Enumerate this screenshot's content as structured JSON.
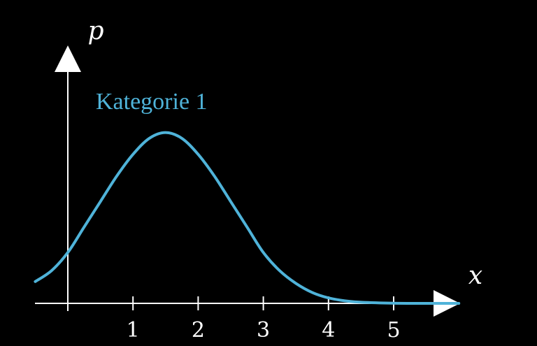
{
  "chart_data": {
    "type": "line",
    "x_axis_label": "x",
    "y_axis_label": "p",
    "x_ticks": [
      1,
      2,
      3,
      4,
      5
    ],
    "xlim": [
      -0.5,
      6.0
    ],
    "series": [
      {
        "name": "Kategorie 1",
        "color": "#4fb3d9",
        "x": [
          -0.5,
          -0.25,
          0.0,
          0.25,
          0.5,
          0.75,
          1.0,
          1.25,
          1.5,
          1.75,
          2.0,
          2.25,
          2.5,
          2.75,
          3.0,
          3.25,
          3.5,
          3.75,
          4.0,
          4.25,
          4.5,
          5.0,
          5.5,
          6.0
        ],
        "y": [
          0.06,
          0.09,
          0.14,
          0.21,
          0.28,
          0.35,
          0.41,
          0.454,
          0.47,
          0.454,
          0.41,
          0.35,
          0.28,
          0.21,
          0.14,
          0.09,
          0.055,
          0.03,
          0.015,
          0.007,
          0.003,
          0.0005,
          0.0,
          0.0
        ]
      }
    ]
  }
}
